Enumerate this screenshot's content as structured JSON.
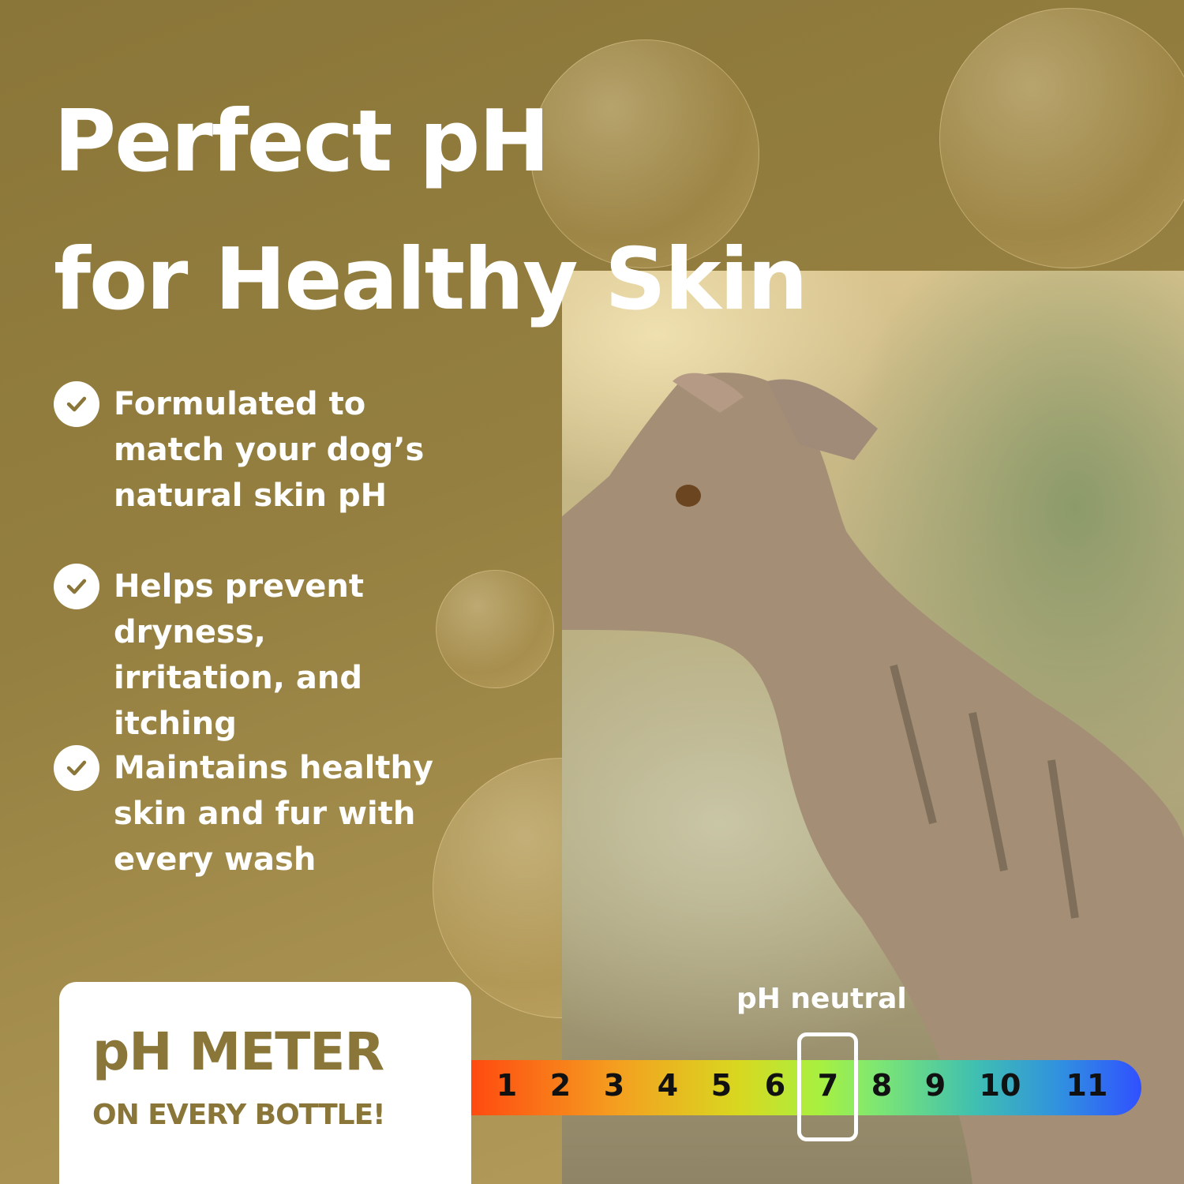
{
  "headline": {
    "line1": "Perfect pH",
    "line2": "for Healthy Skin"
  },
  "features": [
    {
      "icon": "check-circle-icon",
      "text": "Formulated to match your dog’s natural skin pH"
    },
    {
      "icon": "check-circle-icon",
      "text": "Helps prevent dryness, irritation, and itching"
    },
    {
      "icon": "check-circle-icon",
      "text": "Maintains healthy skin and fur with every wash"
    }
  ],
  "meter_badge": {
    "title": "pH METER",
    "subtitle": "ON EVERY BOTTLE!"
  },
  "ph_scale": {
    "label": "pH neutral",
    "values": [
      "1",
      "2",
      "3",
      "4",
      "5",
      "6",
      "7",
      "8",
      "9",
      "10",
      "11"
    ],
    "highlighted": "7"
  },
  "colors": {
    "background": "#8a7638",
    "accent_text": "#8a7638"
  }
}
